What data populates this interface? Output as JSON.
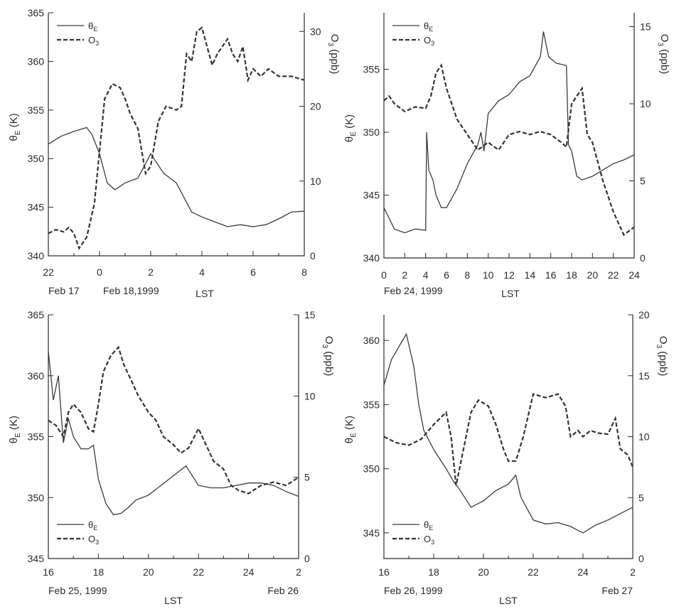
{
  "legend": {
    "theta": "θ",
    "theta_sub": "E",
    "o3": "O",
    "o3_sub": "3"
  },
  "ylabel_left": {
    "main": "θ",
    "sub": "E",
    "unit": " (K)"
  },
  "ylabel_right": {
    "main": "O",
    "sub": "3",
    "unit": " (ppb)"
  },
  "chart_data": [
    {
      "type": "line",
      "xlabel": "LST",
      "x_ticks": [
        "22",
        "0",
        "2",
        "4",
        "6",
        "8"
      ],
      "date_labels": [
        "Feb 17",
        "Feb 18,1999"
      ],
      "xlim": [
        -2,
        8
      ],
      "ylim_left": [
        340,
        365
      ],
      "ylim_right": [
        0,
        32.5
      ],
      "y_ticks_left": [
        340,
        345,
        350,
        355,
        360,
        365
      ],
      "y_ticks_right": [
        0,
        10,
        20,
        30
      ],
      "legend_position": "top-left",
      "series": [
        {
          "name": "θE",
          "axis": "left",
          "style": "solid",
          "x": [
            -2,
            -1.5,
            -1,
            -0.5,
            -0.3,
            0,
            0.3,
            0.6,
            1,
            1.5,
            2,
            2.5,
            3,
            3.3,
            3.6,
            4,
            4.5,
            5,
            5.5,
            6,
            6.5,
            7,
            7.5,
            8
          ],
          "y": [
            351.5,
            352.3,
            352.8,
            353.2,
            352.5,
            350.5,
            347.5,
            346.8,
            347.5,
            348,
            350.5,
            348.5,
            347.5,
            346,
            344.5,
            344,
            343.5,
            343,
            343.2,
            343,
            343.2,
            343.8,
            344.5,
            344.6
          ]
        },
        {
          "name": "O3",
          "axis": "right",
          "style": "dashed",
          "x": [
            -2,
            -1.7,
            -1.4,
            -1.2,
            -1,
            -0.8,
            -0.5,
            -0.2,
            0,
            0.2,
            0.5,
            0.8,
            1,
            1.2,
            1.5,
            1.8,
            2,
            2.3,
            2.6,
            3,
            3.2,
            3.4,
            3.6,
            3.8,
            4,
            4.2,
            4.4,
            4.6,
            4.8,
            5,
            5.2,
            5.4,
            5.6,
            5.8,
            6,
            6.3,
            6.6,
            7,
            7.5,
            8
          ],
          "y": [
            3,
            3.5,
            3.2,
            3.8,
            3,
            1,
            2.5,
            7,
            14,
            21,
            23,
            22.5,
            21,
            19,
            17,
            11,
            12,
            18,
            20,
            19.5,
            20,
            27,
            26,
            30,
            30.5,
            28,
            25.5,
            27,
            28,
            29,
            27,
            26,
            28,
            23.5,
            25,
            24,
            25,
            24,
            24,
            23.5
          ]
        }
      ]
    },
    {
      "type": "line",
      "xlabel": "LST",
      "x_ticks": [
        "0",
        "2",
        "4",
        "6",
        "8",
        "10",
        "12",
        "14",
        "16",
        "18",
        "20",
        "22",
        "24"
      ],
      "date_labels": [
        "Feb 24, 1999"
      ],
      "xlim": [
        0,
        24
      ],
      "ylim_left": [
        340,
        359.5
      ],
      "ylim_right": [
        0,
        15.9
      ],
      "y_ticks_left": [
        340,
        345,
        350,
        355
      ],
      "y_ticks_right": [
        0,
        5,
        10,
        15
      ],
      "legend_position": "top-left",
      "series": [
        {
          "name": "θE",
          "axis": "left",
          "style": "solid",
          "x": [
            0,
            1,
            2,
            3,
            4,
            4.1,
            4.3,
            4.7,
            5,
            5.5,
            6,
            7,
            8,
            9,
            9.3,
            9.6,
            10,
            11,
            12,
            13,
            14,
            15,
            15.3,
            15.8,
            16.5,
            17.5,
            17.7,
            18,
            18.5,
            19,
            20,
            21,
            22,
            23,
            24
          ],
          "y": [
            344,
            342.3,
            342,
            342.3,
            342.2,
            350,
            347,
            346.2,
            345,
            344,
            344,
            345.5,
            347.5,
            349,
            350,
            348.5,
            351.5,
            352.5,
            353,
            354,
            354.5,
            356,
            358,
            356,
            355.5,
            355.3,
            349,
            348.5,
            346.5,
            346.2,
            346.5,
            347,
            347.5,
            347.8,
            348.2
          ]
        },
        {
          "name": "O3",
          "axis": "right",
          "style": "dashed",
          "x": [
            0,
            0.5,
            1,
            2,
            3,
            4,
            4.5,
            5,
            5.5,
            6,
            7,
            8,
            9,
            10,
            11,
            12,
            13,
            14,
            15,
            16,
            17,
            17.5,
            18,
            18.5,
            19,
            19.5,
            20,
            21,
            22,
            23,
            24
          ],
          "y": [
            10.2,
            10.5,
            10,
            9.5,
            9.8,
            9.7,
            10.5,
            12,
            12.5,
            11,
            9,
            8,
            7,
            7.5,
            7,
            8,
            8.2,
            8,
            8.2,
            8,
            7.5,
            7.2,
            10,
            10.5,
            11,
            8,
            7.5,
            5,
            3,
            1.5,
            2
          ]
        }
      ]
    },
    {
      "type": "line",
      "xlabel": "LST",
      "x_ticks": [
        "16",
        "18",
        "20",
        "22",
        "24",
        "2"
      ],
      "date_labels": [
        "Feb 25, 1999",
        "Feb 26"
      ],
      "xlim": [
        16,
        26
      ],
      "ylim_left": [
        345,
        365
      ],
      "ylim_right": [
        0,
        15
      ],
      "y_ticks_left": [
        345,
        350,
        355,
        360,
        365
      ],
      "y_ticks_right": [
        0,
        5,
        10,
        15
      ],
      "legend_position": "bottom-left",
      "series": [
        {
          "name": "θE",
          "axis": "left",
          "style": "solid",
          "x": [
            16,
            16.2,
            16.4,
            16.6,
            16.8,
            17,
            17.3,
            17.6,
            17.8,
            18,
            18.3,
            18.6,
            18.9,
            19.2,
            19.5,
            20,
            20.5,
            21,
            21.5,
            22,
            22.5,
            23,
            23.5,
            24,
            24.5,
            25,
            25.5,
            26
          ],
          "y": [
            362,
            358,
            360,
            354.5,
            356.5,
            355,
            354,
            354,
            354.3,
            351.5,
            349.5,
            348.6,
            348.7,
            349.2,
            349.8,
            350.2,
            351,
            351.8,
            352.6,
            351,
            350.8,
            350.8,
            351,
            351.2,
            351.2,
            351,
            350.5,
            350.1
          ]
        },
        {
          "name": "O3",
          "axis": "right",
          "style": "dashed",
          "x": [
            16,
            16.3,
            16.6,
            16.8,
            17,
            17.3,
            17.6,
            17.8,
            18,
            18.2,
            18.5,
            18.8,
            19,
            19.3,
            19.6,
            20,
            20.3,
            20.6,
            21,
            21.3,
            21.6,
            22,
            22.3,
            22.6,
            23,
            23.3,
            23.6,
            24,
            24.5,
            25,
            25.5,
            26
          ],
          "y": [
            8.5,
            8.2,
            7.5,
            9,
            9.5,
            9,
            8,
            7.8,
            9.5,
            11.5,
            12.5,
            13,
            12,
            11,
            10,
            9,
            8.5,
            7.5,
            7,
            6.5,
            6.8,
            8,
            7,
            6,
            5.5,
            4.5,
            4.2,
            4,
            4.5,
            4.7,
            4.5,
            5
          ]
        }
      ]
    },
    {
      "type": "line",
      "xlabel": "LST",
      "x_ticks": [
        "16",
        "18",
        "20",
        "22",
        "24",
        "2"
      ],
      "date_labels": [
        "Feb 26, 1999",
        "Feb 27"
      ],
      "xlim": [
        16,
        26
      ],
      "ylim_left": [
        343,
        362
      ],
      "ylim_right": [
        0,
        20
      ],
      "y_ticks_left": [
        345,
        350,
        355,
        360
      ],
      "y_ticks_right": [
        0,
        5,
        10,
        15,
        20
      ],
      "legend_position": "bottom-left",
      "series": [
        {
          "name": "θE",
          "axis": "left",
          "style": "solid",
          "x": [
            16,
            16.3,
            16.6,
            16.9,
            17.2,
            17.4,
            17.6,
            18,
            18.5,
            18.8,
            19,
            19.5,
            20,
            20.5,
            21,
            21.3,
            21.5,
            22,
            22.5,
            23,
            23.5,
            24,
            24.5,
            25,
            25.5,
            26
          ],
          "y": [
            356.5,
            358.5,
            359.5,
            360.5,
            358,
            355,
            353,
            351.5,
            350,
            349,
            348.5,
            347,
            347.5,
            348.3,
            348.8,
            349.5,
            347.8,
            346,
            345.7,
            345.8,
            345.5,
            345,
            345.6,
            346,
            346.5,
            347
          ]
        },
        {
          "name": "O3",
          "axis": "right",
          "style": "dashed",
          "x": [
            16,
            16.5,
            17,
            17.5,
            18,
            18.5,
            18.7,
            18.9,
            19.2,
            19.5,
            19.8,
            20.2,
            20.5,
            20.8,
            21,
            21.3,
            21.6,
            22,
            22.5,
            23,
            23.3,
            23.5,
            23.8,
            24,
            24.3,
            24.6,
            25,
            25.3,
            25.5,
            25.8,
            26
          ],
          "y": [
            10,
            9.5,
            9.3,
            9.8,
            11,
            12,
            10,
            6,
            9,
            12,
            13,
            12.5,
            11,
            9,
            8,
            8,
            10,
            13.5,
            13.2,
            13.5,
            12.5,
            10,
            10.5,
            10,
            10.5,
            10.3,
            10.2,
            11.5,
            9,
            8.5,
            7.5
          ]
        }
      ]
    }
  ]
}
